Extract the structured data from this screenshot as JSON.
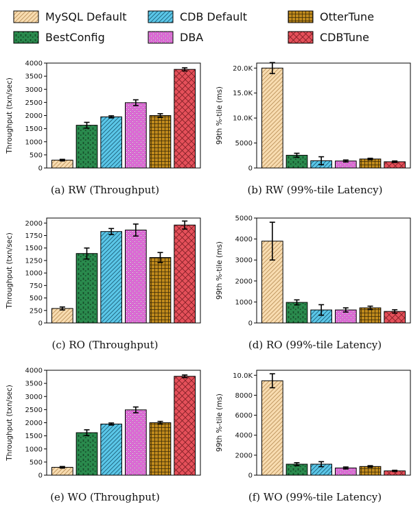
{
  "colors": {
    "mysql": "#f8dcb0",
    "bestconfig": "#2a8a4d",
    "cdb": "#5bc7e8",
    "dba": "#df6bd8",
    "ottertune": "#c08a1c",
    "cdbtune": "#e5505a"
  },
  "legend": [
    {
      "name": "MySQL Default",
      "color_key": "mysql",
      "pattern": "diag-light"
    },
    {
      "name": "CDB Default",
      "color_key": "cdb",
      "pattern": "diag-dark"
    },
    {
      "name": "OtterTune",
      "color_key": "ottertune",
      "pattern": "grid"
    },
    {
      "name": "BestConfig",
      "color_key": "bestconfig",
      "pattern": "stars"
    },
    {
      "name": "DBA",
      "color_key": "dba",
      "pattern": "dots"
    },
    {
      "name": "CDBTune",
      "color_key": "cdbtune",
      "pattern": "cross"
    }
  ],
  "chart_data": [
    {
      "type": "bar",
      "caption": "(a) RW (Throughput)",
      "ylabel": "Throughput (txn/sec)",
      "ylim": [
        0,
        4000
      ],
      "yticks": [
        0,
        500,
        1000,
        1500,
        2000,
        2500,
        3000,
        3500,
        4000
      ],
      "ytick_labels": [
        "0",
        "500",
        "1000",
        "1500",
        "2000",
        "2500",
        "3000",
        "3500",
        "4000"
      ],
      "categories": [
        "MySQL Default",
        "BestConfig",
        "CDB Default",
        "DBA",
        "OtterTune",
        "CDBTune"
      ],
      "values": [
        300,
        1630,
        1950,
        2490,
        2000,
        3760
      ],
      "errors": [
        30,
        110,
        40,
        110,
        70,
        60
      ],
      "grid": false
    },
    {
      "type": "bar",
      "caption": "(b) RW (99%-tile Latency)",
      "ylabel": "99th %-tile (ms)",
      "ylim": [
        0,
        21000
      ],
      "yticks": [
        0,
        5000,
        10000,
        15000,
        20000
      ],
      "ytick_labels": [
        "0",
        "5000",
        "10.0K",
        "15.0K",
        "20.0K"
      ],
      "categories": [
        "MySQL Default",
        "BestConfig",
        "CDB Default",
        "DBA",
        "OtterTune",
        "CDBTune"
      ],
      "values": [
        20000,
        2550,
        1450,
        1400,
        1800,
        1250
      ],
      "errors": [
        1100,
        400,
        800,
        200,
        150,
        150
      ],
      "grid": false
    },
    {
      "type": "bar",
      "caption": "(c) RO (Throughput)",
      "ylabel": "Throughput (txn/sec)",
      "ylim": [
        0,
        2100
      ],
      "yticks": [
        0,
        250,
        500,
        750,
        1000,
        1250,
        1500,
        1750,
        2000
      ],
      "ytick_labels": [
        "0",
        "250",
        "500",
        "750",
        "1000",
        "1250",
        "1500",
        "1750",
        "2000"
      ],
      "categories": [
        "MySQL Default",
        "BestConfig",
        "CDB Default",
        "DBA",
        "OtterTune",
        "CDBTune"
      ],
      "values": [
        290,
        1390,
        1830,
        1860,
        1310,
        1960
      ],
      "errors": [
        30,
        110,
        60,
        120,
        100,
        80
      ],
      "grid": false
    },
    {
      "type": "bar",
      "caption": "(d) RO (99%-tile Latency)",
      "ylabel": "99th %-tile (ms)",
      "ylim": [
        0,
        5000
      ],
      "yticks": [
        0,
        1000,
        2000,
        3000,
        4000,
        5000
      ],
      "ytick_labels": [
        "0",
        "1000",
        "2000",
        "3000",
        "4000",
        "5000"
      ],
      "categories": [
        "MySQL Default",
        "BestConfig",
        "CDB Default",
        "DBA",
        "OtterTune",
        "CDBTune"
      ],
      "values": [
        3900,
        980,
        620,
        620,
        720,
        550
      ],
      "errors": [
        900,
        120,
        250,
        100,
        80,
        80
      ],
      "grid": false
    },
    {
      "type": "bar",
      "caption": "(e) WO (Throughput)",
      "ylabel": "Throughput (txn/sec)",
      "ylim": [
        0,
        4000
      ],
      "yticks": [
        0,
        500,
        1000,
        1500,
        2000,
        2500,
        3000,
        3500,
        4000
      ],
      "ytick_labels": [
        "0",
        "500",
        "1000",
        "1500",
        "2000",
        "2500",
        "3000",
        "3500",
        "4000"
      ],
      "categories": [
        "MySQL Default",
        "BestConfig",
        "CDB Default",
        "DBA",
        "OtterTune",
        "CDBTune"
      ],
      "values": [
        300,
        1620,
        1950,
        2490,
        2000,
        3770
      ],
      "errors": [
        30,
        110,
        40,
        110,
        50,
        50
      ],
      "grid": false
    },
    {
      "type": "bar",
      "caption": "(f) WO (99%-tile Latency)",
      "ylabel": "99th %-tile (ms)",
      "ylim": [
        0,
        10500
      ],
      "yticks": [
        0,
        2000,
        4000,
        6000,
        8000,
        10000
      ],
      "ytick_labels": [
        "0",
        "2000",
        "4000",
        "6000",
        "8000",
        "10.0K"
      ],
      "categories": [
        "MySQL Default",
        "BestConfig",
        "CDB Default",
        "DBA",
        "OtterTune",
        "CDBTune"
      ],
      "values": [
        9450,
        1100,
        1100,
        720,
        870,
        430
      ],
      "errors": [
        700,
        150,
        250,
        100,
        80,
        60
      ],
      "grid": false
    }
  ]
}
